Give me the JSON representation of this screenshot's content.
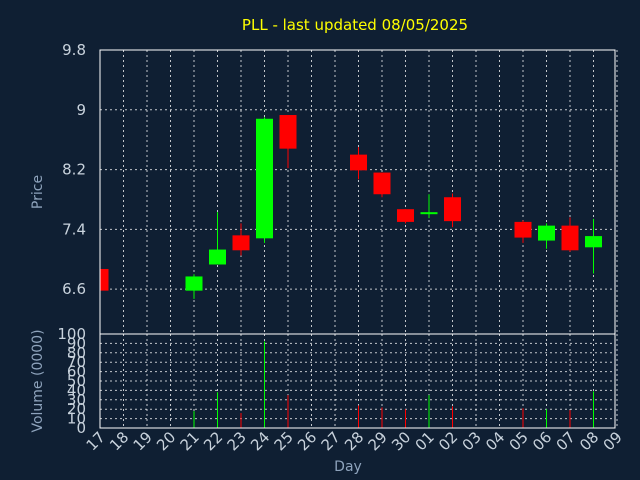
{
  "chart_data": [
    {
      "type": "candlestick",
      "title": "PLL - last updated 08/05/2025",
      "ylabel": "Price",
      "xlabel": "Day",
      "ylim": [
        6.0,
        9.8
      ],
      "yticks": [
        6.6,
        7.4,
        8.2,
        9,
        9.8
      ],
      "ytick_labels": [
        "6.6",
        "7.4",
        "8.2",
        "9",
        "9.8"
      ],
      "grid": true,
      "colors": {
        "up": "#00ff00",
        "down": "#ff0000",
        "background": "#0f1f33",
        "plot": "#0f1f33"
      },
      "candles": [
        {
          "day": "17",
          "open": 6.87,
          "high": 6.88,
          "low": 6.58,
          "close": 6.58
        },
        {
          "day": "21",
          "open": 6.58,
          "high": 6.8,
          "low": 6.47,
          "close": 6.77
        },
        {
          "day": "22",
          "open": 6.93,
          "high": 7.63,
          "low": 6.93,
          "close": 7.13
        },
        {
          "day": "23",
          "open": 7.32,
          "high": 7.48,
          "low": 7.05,
          "close": 7.12
        },
        {
          "day": "24",
          "open": 7.28,
          "high": 8.9,
          "low": 7.22,
          "close": 8.88
        },
        {
          "day": "25",
          "open": 8.93,
          "high": 8.93,
          "low": 8.22,
          "close": 8.48
        },
        {
          "day": "28",
          "open": 8.4,
          "high": 8.5,
          "low": 8.07,
          "close": 8.19
        },
        {
          "day": "29",
          "open": 8.16,
          "high": 8.16,
          "low": 7.83,
          "close": 7.87
        },
        {
          "day": "30",
          "open": 7.67,
          "high": 7.67,
          "low": 7.48,
          "close": 7.5
        },
        {
          "day": "01",
          "open": 7.61,
          "high": 7.87,
          "low": 7.55,
          "close": 7.63
        },
        {
          "day": "02",
          "open": 7.83,
          "high": 7.88,
          "low": 7.43,
          "close": 7.51
        },
        {
          "day": "05",
          "open": 7.5,
          "high": 7.52,
          "low": 7.22,
          "close": 7.29
        },
        {
          "day": "06",
          "open": 7.25,
          "high": 7.48,
          "low": 7.14,
          "close": 7.45
        },
        {
          "day": "07",
          "open": 7.45,
          "high": 7.56,
          "low": 7.1,
          "close": 7.12
        },
        {
          "day": "08",
          "open": 7.16,
          "high": 7.54,
          "low": 6.81,
          "close": 7.31
        }
      ]
    },
    {
      "type": "bar",
      "ylabel": "Volume (0000)",
      "xlabel": "Day",
      "ylim": [
        0,
        100
      ],
      "yticks": [
        0,
        10,
        20,
        30,
        40,
        50,
        60,
        70,
        80,
        90,
        100
      ],
      "ytick_labels": [
        "0",
        "10",
        "20",
        "30",
        "40",
        "50",
        "60",
        "70",
        "80",
        "90",
        "100"
      ],
      "grid": true,
      "categories": [
        "17",
        "18",
        "19",
        "20",
        "21",
        "22",
        "23",
        "24",
        "25",
        "26",
        "27",
        "28",
        "29",
        "30",
        "01",
        "02",
        "03",
        "04",
        "05",
        "06",
        "07",
        "08",
        "09"
      ],
      "values": [
        0,
        0,
        0,
        0,
        18,
        38,
        16,
        92,
        35,
        0,
        0,
        24,
        22,
        20,
        35,
        23,
        0,
        0,
        21,
        20,
        19,
        39,
        0
      ],
      "direction": [
        "",
        "",
        "",
        "",
        "up",
        "up",
        "down",
        "up",
        "down",
        "",
        "",
        "down",
        "down",
        "down",
        "up",
        "down",
        "",
        "",
        "down",
        "up",
        "down",
        "up",
        ""
      ]
    }
  ]
}
